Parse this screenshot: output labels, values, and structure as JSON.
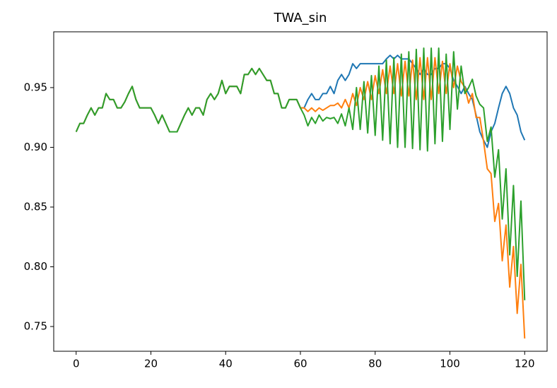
{
  "chart_data": {
    "type": "line",
    "title": "TWA_sin",
    "x": [
      0,
      1,
      2,
      3,
      4,
      5,
      6,
      7,
      8,
      9,
      10,
      11,
      12,
      13,
      14,
      15,
      16,
      17,
      18,
      19,
      20,
      21,
      22,
      23,
      24,
      25,
      26,
      27,
      28,
      29,
      30,
      31,
      32,
      33,
      34,
      35,
      36,
      37,
      38,
      39,
      40,
      41,
      42,
      43,
      44,
      45,
      46,
      47,
      48,
      49,
      50,
      51,
      52,
      53,
      54,
      55,
      56,
      57,
      58,
      59,
      60,
      61,
      62,
      63,
      64,
      65,
      66,
      67,
      68,
      69,
      70,
      71,
      72,
      73,
      74,
      75,
      76,
      77,
      78,
      79,
      80,
      81,
      82,
      83,
      84,
      85,
      86,
      87,
      88,
      89,
      90,
      91,
      92,
      93,
      94,
      95,
      96,
      97,
      98,
      99,
      100,
      101,
      102,
      103,
      104,
      105,
      106,
      107,
      108,
      109,
      110,
      111,
      112,
      113,
      114,
      115,
      116,
      117,
      118,
      119,
      120
    ],
    "series": [
      {
        "color": "#1f77b4",
        "values": [
          0.913,
          0.92,
          0.92,
          0.927,
          0.933,
          0.927,
          0.933,
          0.933,
          0.945,
          0.94,
          0.94,
          0.933,
          0.933,
          0.938,
          0.945,
          0.951,
          0.94,
          0.933,
          0.933,
          0.933,
          0.933,
          0.927,
          0.92,
          0.927,
          0.92,
          0.913,
          0.913,
          0.913,
          0.92,
          0.927,
          0.933,
          0.927,
          0.933,
          0.933,
          0.927,
          0.94,
          0.945,
          0.94,
          0.945,
          0.956,
          0.945,
          0.951,
          0.951,
          0.951,
          0.945,
          0.961,
          0.961,
          0.966,
          0.961,
          0.966,
          0.961,
          0.956,
          0.956,
          0.945,
          0.945,
          0.933,
          0.933,
          0.94,
          0.94,
          0.94,
          0.933,
          0.933,
          0.94,
          0.945,
          0.94,
          0.94,
          0.945,
          0.945,
          0.951,
          0.945,
          0.956,
          0.961,
          0.956,
          0.961,
          0.97,
          0.966,
          0.97,
          0.97,
          0.97,
          0.97,
          0.97,
          0.97,
          0.97,
          0.974,
          0.977,
          0.974,
          0.977,
          0.974,
          0.974,
          0.974,
          0.97,
          0.966,
          0.961,
          0.966,
          0.961,
          0.961,
          0.966,
          0.966,
          0.97,
          0.97,
          0.966,
          0.956,
          0.951,
          0.945,
          0.951,
          0.945,
          0.94,
          0.927,
          0.913,
          0.906,
          0.9,
          0.913,
          0.92,
          0.933,
          0.945,
          0.951,
          0.945,
          0.933,
          0.927,
          0.913,
          0.906
        ]
      },
      {
        "color": "#ff7f0e",
        "values": [
          0.913,
          0.92,
          0.92,
          0.927,
          0.933,
          0.927,
          0.933,
          0.933,
          0.945,
          0.94,
          0.94,
          0.933,
          0.933,
          0.938,
          0.945,
          0.951,
          0.94,
          0.933,
          0.933,
          0.933,
          0.933,
          0.927,
          0.92,
          0.927,
          0.92,
          0.913,
          0.913,
          0.913,
          0.92,
          0.927,
          0.933,
          0.927,
          0.933,
          0.933,
          0.927,
          0.94,
          0.945,
          0.94,
          0.945,
          0.956,
          0.945,
          0.951,
          0.951,
          0.951,
          0.945,
          0.961,
          0.961,
          0.966,
          0.961,
          0.966,
          0.961,
          0.956,
          0.956,
          0.945,
          0.945,
          0.933,
          0.933,
          0.94,
          0.94,
          0.94,
          0.933,
          0.933,
          0.93,
          0.933,
          0.93,
          0.933,
          0.931,
          0.933,
          0.935,
          0.935,
          0.937,
          0.933,
          0.94,
          0.933,
          0.945,
          0.935,
          0.95,
          0.94,
          0.955,
          0.94,
          0.96,
          0.945,
          0.965,
          0.945,
          0.968,
          0.945,
          0.97,
          0.943,
          0.972,
          0.943,
          0.973,
          0.94,
          0.975,
          0.94,
          0.975,
          0.94,
          0.975,
          0.945,
          0.972,
          0.945,
          0.97,
          0.95,
          0.968,
          0.955,
          0.95,
          0.937,
          0.945,
          0.925,
          0.925,
          0.905,
          0.882,
          0.878,
          0.838,
          0.853,
          0.805,
          0.835,
          0.783,
          0.817,
          0.761,
          0.802,
          0.74
        ]
      },
      {
        "color": "#2ca02c",
        "values": [
          0.913,
          0.92,
          0.92,
          0.927,
          0.933,
          0.927,
          0.933,
          0.933,
          0.945,
          0.94,
          0.94,
          0.933,
          0.933,
          0.938,
          0.945,
          0.951,
          0.94,
          0.933,
          0.933,
          0.933,
          0.933,
          0.927,
          0.92,
          0.927,
          0.92,
          0.913,
          0.913,
          0.913,
          0.92,
          0.927,
          0.933,
          0.927,
          0.933,
          0.933,
          0.927,
          0.94,
          0.945,
          0.94,
          0.945,
          0.956,
          0.945,
          0.951,
          0.951,
          0.951,
          0.945,
          0.961,
          0.961,
          0.966,
          0.961,
          0.966,
          0.961,
          0.956,
          0.956,
          0.945,
          0.945,
          0.933,
          0.933,
          0.94,
          0.94,
          0.94,
          0.933,
          0.927,
          0.918,
          0.925,
          0.92,
          0.927,
          0.922,
          0.925,
          0.924,
          0.925,
          0.92,
          0.928,
          0.918,
          0.933,
          0.915,
          0.95,
          0.915,
          0.955,
          0.912,
          0.96,
          0.91,
          0.968,
          0.906,
          0.973,
          0.903,
          0.975,
          0.9,
          0.978,
          0.9,
          0.98,
          0.899,
          0.982,
          0.898,
          0.983,
          0.897,
          0.983,
          0.903,
          0.983,
          0.905,
          0.978,
          0.915,
          0.98,
          0.932,
          0.968,
          0.945,
          0.95,
          0.957,
          0.943,
          0.936,
          0.933,
          0.905,
          0.917,
          0.875,
          0.898,
          0.84,
          0.882,
          0.81,
          0.868,
          0.792,
          0.855,
          0.772
        ]
      }
    ],
    "xlim": [
      -6,
      126
    ],
    "xticks": [
      0,
      20,
      40,
      60,
      80,
      100,
      120
    ],
    "ylim": [
      0.7293,
      0.9967
    ],
    "yticks": [
      0.75,
      {
        "value": 0.8,
        "label": "0.80"
      },
      0.85,
      {
        "value": 0.9,
        "label": "0.90"
      },
      0.95
    ],
    "grid": false
  }
}
